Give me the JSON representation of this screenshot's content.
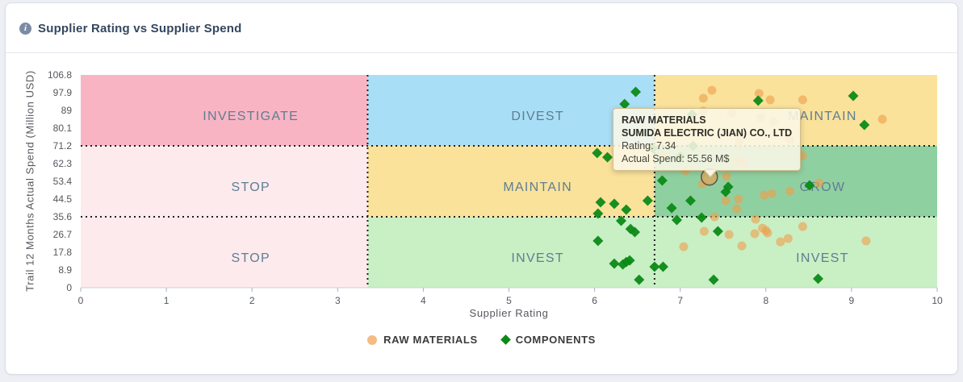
{
  "header": {
    "title": "Supplier Rating vs Supplier Spend",
    "info_glyph": "i"
  },
  "chart_data": {
    "type": "scatter",
    "title": "Supplier Rating vs Supplier Spend",
    "xlabel": "Supplier Rating",
    "ylabel": "Trail 12 Months Actual Spend (Million USD)",
    "xlim": [
      0,
      10
    ],
    "ylim": [
      0,
      106.8
    ],
    "x_ticks": [
      0,
      1,
      2,
      3,
      4,
      5,
      6,
      7,
      8,
      9,
      10
    ],
    "y_ticks": [
      106.8,
      97.9,
      89,
      80.1,
      71.2,
      62.3,
      53.4,
      44.5,
      35.6,
      26.7,
      17.8,
      8.9,
      0
    ],
    "grid": false,
    "legend_position": "bottom-center",
    "quadrant_x": [
      3.35,
      6.7
    ],
    "quadrant_y": [
      35.6,
      71.2
    ],
    "zones": [
      {
        "label": "INVESTIGATE",
        "x": [
          0,
          3.35
        ],
        "y": [
          71.2,
          106.8
        ],
        "color": "#f9b4c3"
      },
      {
        "label": "DIVEST",
        "x": [
          3.35,
          6.7
        ],
        "y": [
          71.2,
          106.8
        ],
        "color": "#a9def7"
      },
      {
        "label": "MAINTAIN",
        "x": [
          6.7,
          10
        ],
        "y": [
          71.2,
          106.8
        ],
        "color": "#fae29b"
      },
      {
        "label": "STOP",
        "x": [
          0,
          3.35
        ],
        "y": [
          35.6,
          71.2
        ],
        "color": "#fdeaed"
      },
      {
        "label": "MAINTAIN",
        "x": [
          3.35,
          6.7
        ],
        "y": [
          35.6,
          71.2
        ],
        "color": "#fae29b"
      },
      {
        "label": "GROW",
        "x": [
          6.7,
          10
        ],
        "y": [
          35.6,
          71.2
        ],
        "color": "#8fd0a1"
      },
      {
        "label": "STOP",
        "x": [
          0,
          3.35
        ],
        "y": [
          0,
          35.6
        ],
        "color": "#fdeaed"
      },
      {
        "label": "INVEST",
        "x": [
          3.35,
          6.7
        ],
        "y": [
          0,
          35.6
        ],
        "color": "#c9efc5"
      },
      {
        "label": "INVEST",
        "x": [
          6.7,
          10
        ],
        "y": [
          0,
          35.6
        ],
        "color": "#c9efc5"
      }
    ],
    "series": [
      {
        "name": "RAW MATERIALS",
        "marker": "circle",
        "color": "#ef9f4d",
        "points": [
          [
            7.27,
            95.1
          ],
          [
            7.37,
            99.1
          ],
          [
            7.92,
            97.5
          ],
          [
            8.05,
            94.3
          ],
          [
            8.43,
            94.3
          ],
          [
            9.36,
            84.6
          ],
          [
            7.27,
            88.6
          ],
          [
            7.6,
            87.8
          ],
          [
            7.94,
            85.4
          ],
          [
            8.09,
            83.3
          ],
          [
            7.69,
            73.2
          ],
          [
            8.28,
            74.4
          ],
          [
            8.43,
            66.3
          ],
          [
            6.8,
            66.3
          ],
          [
            7.65,
            63.9
          ],
          [
            7.74,
            62.7
          ],
          [
            7.06,
            58.7
          ],
          [
            7.54,
            55.9
          ],
          [
            7.26,
            52.2
          ],
          [
            7.68,
            44.5
          ],
          [
            7.53,
            43.7
          ],
          [
            7.66,
            39.6
          ],
          [
            7.98,
            46.5
          ],
          [
            8.07,
            47.3
          ],
          [
            8.28,
            48.5
          ],
          [
            8.62,
            52.6
          ],
          [
            7.4,
            35.6
          ],
          [
            7.88,
            34.4
          ],
          [
            7.28,
            28.3
          ],
          [
            7.57,
            26.7
          ],
          [
            7.72,
            21.0
          ],
          [
            7.87,
            27.1
          ],
          [
            7.96,
            29.9
          ],
          [
            8.0,
            28.7
          ],
          [
            8.02,
            27.5
          ],
          [
            8.17,
            23.0
          ],
          [
            8.26,
            24.7
          ],
          [
            8.43,
            30.7
          ],
          [
            7.04,
            20.6
          ],
          [
            9.17,
            23.5
          ]
        ]
      },
      {
        "name": "COMPONENTS",
        "marker": "diamond",
        "color": "#0c8a17",
        "points": [
          [
            6.48,
            98.3
          ],
          [
            6.35,
            92.2
          ],
          [
            9.02,
            96.3
          ],
          [
            7.91,
            93.9
          ],
          [
            9.15,
            81.7
          ],
          [
            7.14,
            87.0
          ],
          [
            6.68,
            70.0
          ],
          [
            7.0,
            65.9
          ],
          [
            7.15,
            71.2
          ],
          [
            6.03,
            67.6
          ],
          [
            6.15,
            65.5
          ],
          [
            6.79,
            53.8
          ],
          [
            6.62,
            43.7
          ],
          [
            6.07,
            42.9
          ],
          [
            6.23,
            42.1
          ],
          [
            6.37,
            39.2
          ],
          [
            6.04,
            37.2
          ],
          [
            7.12,
            43.7
          ],
          [
            6.9,
            40.0
          ],
          [
            7.56,
            50.6
          ],
          [
            7.53,
            48.1
          ],
          [
            8.51,
            51.4
          ],
          [
            6.31,
            33.6
          ],
          [
            6.96,
            34.0
          ],
          [
            7.25,
            35.2
          ],
          [
            6.42,
            29.5
          ],
          [
            6.47,
            27.9
          ],
          [
            6.04,
            23.5
          ],
          [
            7.44,
            28.3
          ],
          [
            6.23,
            12.1
          ],
          [
            6.33,
            11.7
          ],
          [
            6.37,
            12.9
          ],
          [
            6.41,
            13.7
          ],
          [
            6.52,
            4.0
          ],
          [
            6.7,
            10.5
          ],
          [
            6.8,
            10.5
          ],
          [
            7.39,
            4.0
          ],
          [
            8.61,
            4.5
          ]
        ]
      }
    ],
    "highlight_point": {
      "series": "RAW MATERIALS",
      "x": 7.34,
      "y": 55.56,
      "ring_color": "#5d5c4e"
    }
  },
  "tooltip": {
    "category": "RAW MATERIALS",
    "supplier": "SUMIDA ELECTRIC (JIAN) CO., LTD",
    "rating_line": "Rating: 7.34",
    "spend_line": "Actual Spend: 55.56 M$"
  },
  "colors": {
    "zone_label": "#5e7d92",
    "axis_text": "#54565c",
    "raw_materials": "#ef9f4d",
    "components": "#0c8a17",
    "tooltip_bg": "#fbf7e6",
    "tooltip_border": "#d2bd8f"
  }
}
